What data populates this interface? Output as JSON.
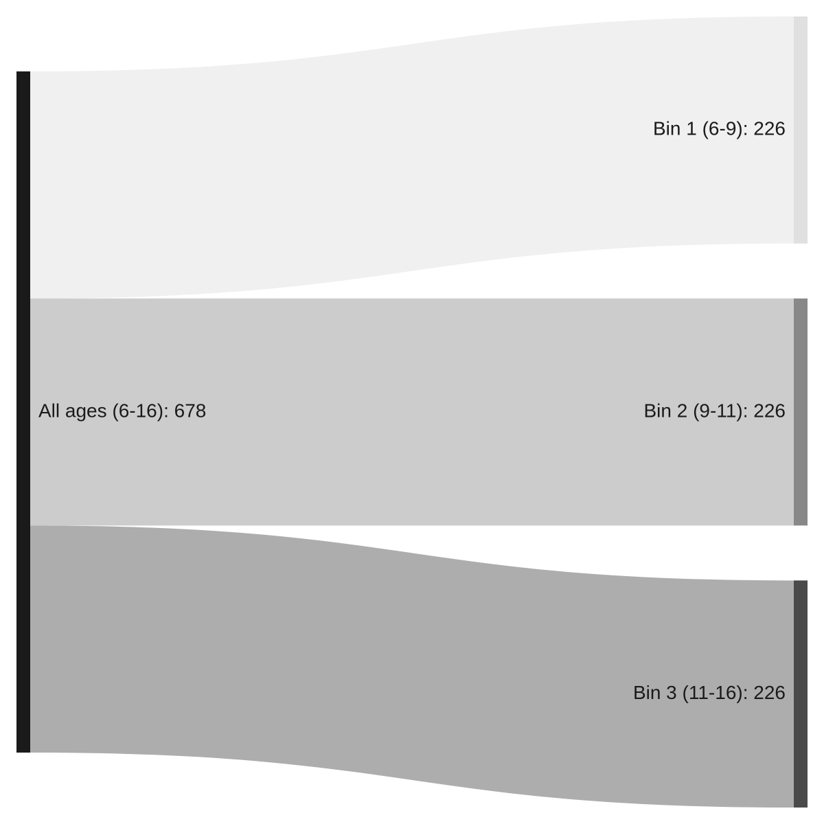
{
  "chart_data": {
    "type": "sankey",
    "nodes": [
      {
        "id": "all",
        "name": "All ages (6-16)",
        "value": 678,
        "label": "All ages (6-16): 678",
        "color": "#1a1a1a"
      },
      {
        "id": "bin1",
        "name": "Bin 1 (6-9)",
        "value": 226,
        "label": "Bin 1 (6-9): 226",
        "color": "#e0e0e0"
      },
      {
        "id": "bin2",
        "name": "Bin 2 (9-11)",
        "value": 226,
        "label": "Bin 2 (9-11): 226",
        "color": "#888888"
      },
      {
        "id": "bin3",
        "name": "Bin 3 (11-16)",
        "value": 226,
        "label": "Bin 3 (11-16): 226",
        "color": "#4a4a4a"
      }
    ],
    "links": [
      {
        "source": "all",
        "target": "bin1",
        "value": 226,
        "color": "#f0f0f0"
      },
      {
        "source": "all",
        "target": "bin2",
        "value": 226,
        "color": "#cccccc"
      },
      {
        "source": "all",
        "target": "bin3",
        "value": 226,
        "color": "#adadad"
      }
    ]
  }
}
